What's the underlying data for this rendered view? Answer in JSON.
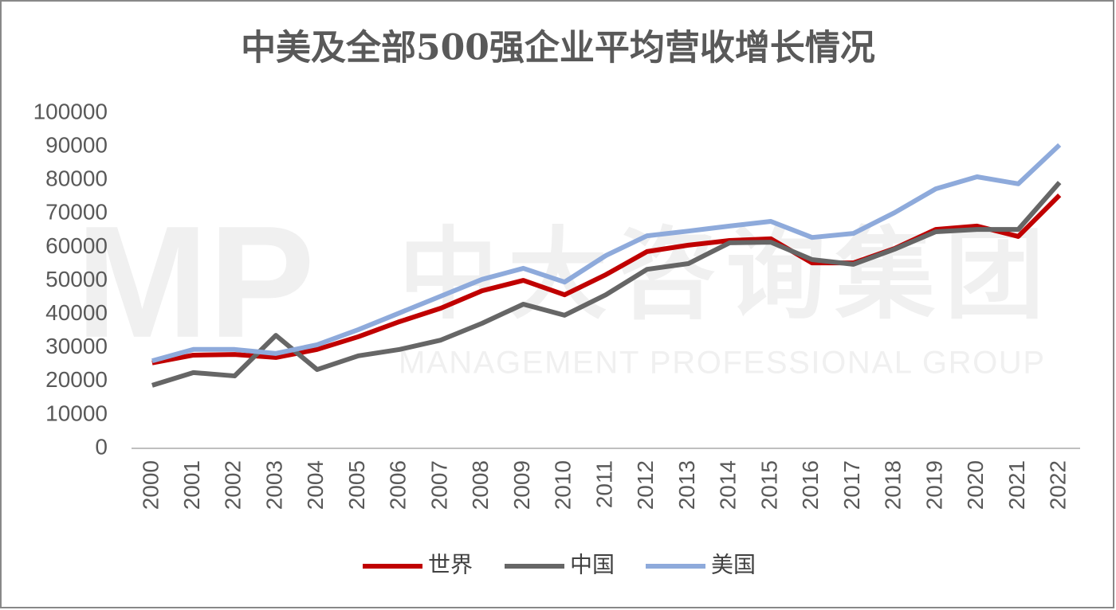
{
  "chart_data": {
    "type": "line",
    "title": "中美及全部500强企业平均营收增长情况",
    "watermark": {
      "logo": "MP",
      "name": "中大咨询集团",
      "tagline": "MANAGEMENT PROFESSIONAL GROUP"
    },
    "categories": [
      "2000",
      "2001",
      "2002",
      "2003",
      "2004",
      "2005",
      "2006",
      "2007",
      "2008",
      "2009",
      "2010",
      "2011",
      "2012",
      "2013",
      "2014",
      "2015",
      "2016",
      "2017",
      "2018",
      "2019",
      "2020",
      "2021",
      "2022"
    ],
    "series": [
      {
        "name": "世界",
        "color": "#c00000",
        "values": [
          25500,
          27800,
          28000,
          27100,
          29500,
          33300,
          37800,
          41800,
          47000,
          50100,
          45800,
          51800,
          58700,
          60600,
          62000,
          62500,
          55300,
          55300,
          59600,
          65300,
          66300,
          63200,
          75500
        ]
      },
      {
        "name": "中国",
        "color": "#666666",
        "values": [
          18800,
          22600,
          21600,
          33700,
          23500,
          27600,
          29500,
          32300,
          37300,
          43000,
          39700,
          45800,
          53400,
          55100,
          61300,
          61500,
          56300,
          54900,
          59400,
          64600,
          65300,
          65300,
          79300
        ]
      },
      {
        "name": "美国",
        "color": "#8eaadb",
        "values": [
          26100,
          29500,
          29500,
          28300,
          30900,
          35400,
          40400,
          45400,
          50400,
          53700,
          49600,
          57500,
          63400,
          64800,
          66300,
          67700,
          62900,
          64100,
          70300,
          77400,
          81000,
          78900,
          90500
        ]
      }
    ],
    "ylim": [
      0,
      100000
    ],
    "yticks": [
      0,
      10000,
      20000,
      30000,
      40000,
      50000,
      60000,
      70000,
      80000,
      90000,
      100000
    ],
    "grid": false,
    "legend": "bottom"
  }
}
